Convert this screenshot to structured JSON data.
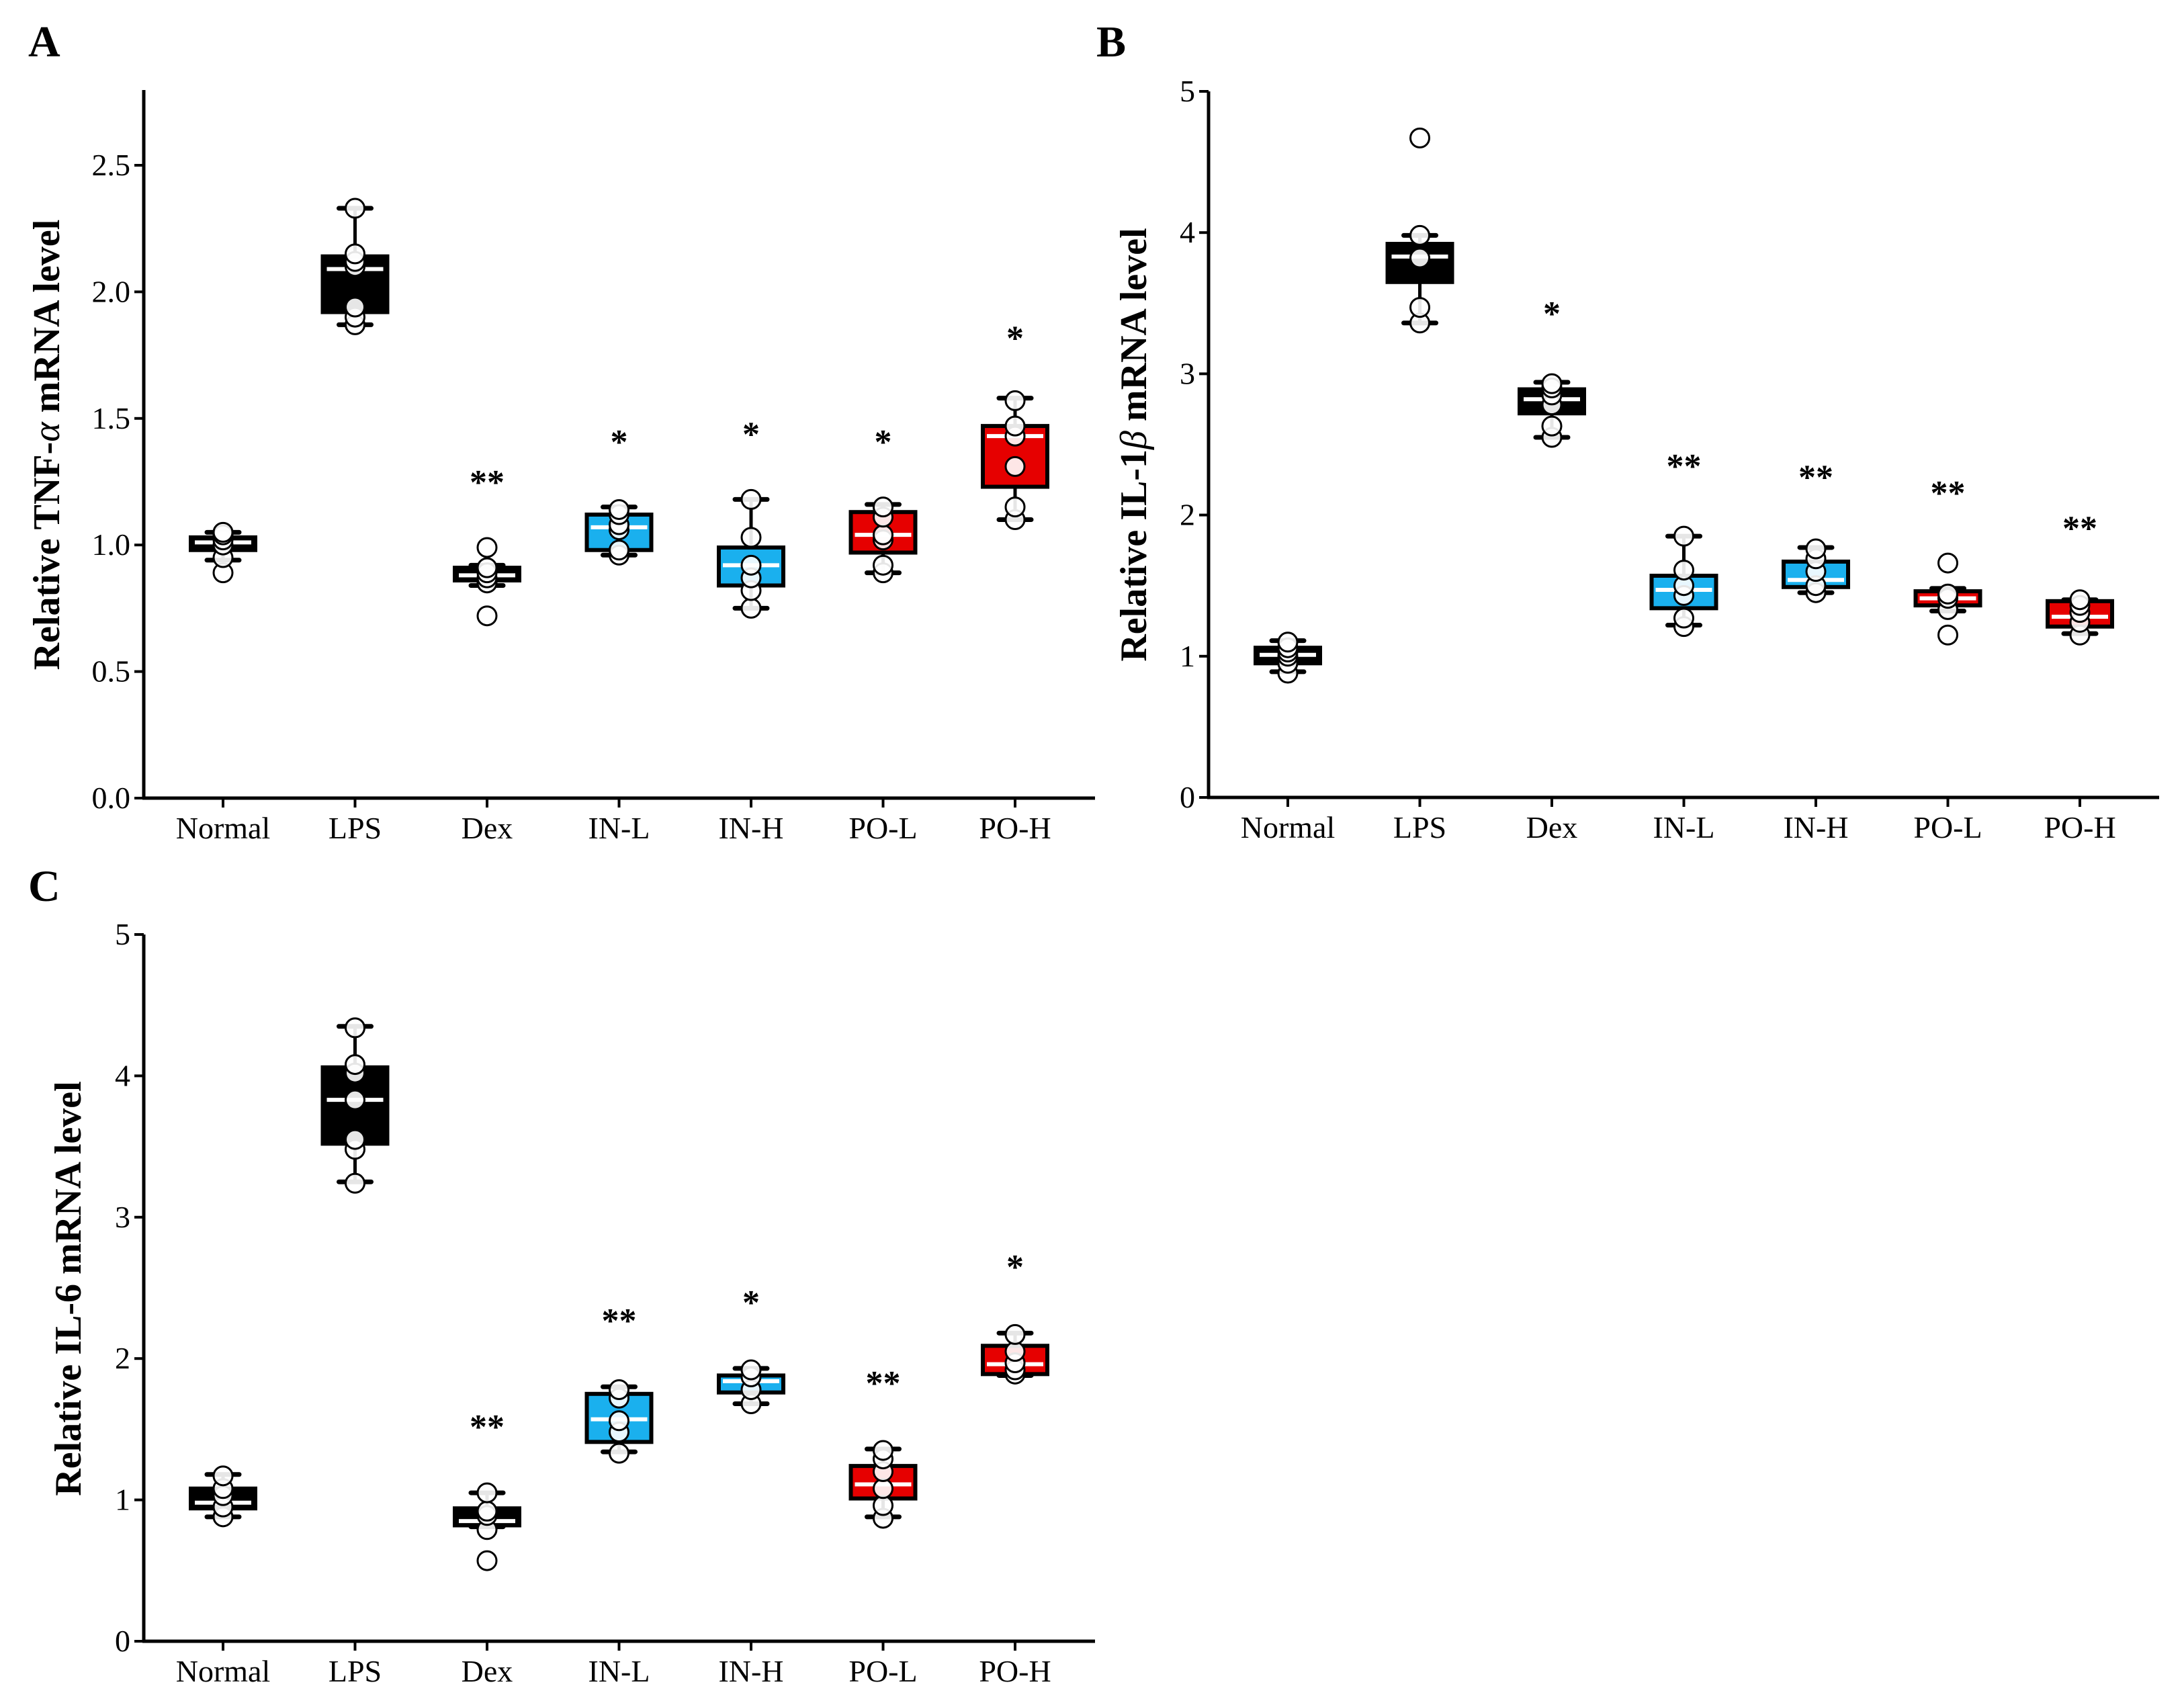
{
  "chart_data": [
    {
      "type": "box",
      "panel": "A",
      "ylabel": "Relative TNF-α mRNA level",
      "xlabel": "",
      "ylim": [
        0,
        2.8
      ],
      "yticks": [
        "0.0",
        "0.5",
        "1.0",
        "1.5",
        "2.0",
        "2.5"
      ],
      "categories": [
        "Normal",
        "LPS",
        "Dex",
        "IN-L",
        "IN-H",
        "PO-L",
        "PO-H"
      ],
      "groups": [
        {
          "name": "Normal",
          "color": "#000000",
          "whisker": [
            0.94,
            1.05
          ],
          "box": [
            0.98,
            1.03
          ],
          "median": 1.01,
          "points": [
            0.89,
            0.95,
            1.0,
            1.02,
            1.04,
            1.05
          ],
          "sig": "",
          "sig_y": 0
        },
        {
          "name": "LPS",
          "color": "#000000",
          "whisker": [
            1.87,
            2.33
          ],
          "box": [
            1.92,
            2.14
          ],
          "median": 2.09,
          "points": [
            1.87,
            1.9,
            1.94,
            2.1,
            2.12,
            2.15,
            2.33
          ],
          "sig": "",
          "sig_y": 0
        },
        {
          "name": "Dex",
          "color": "#000000",
          "whisker": [
            0.84,
            0.92
          ],
          "box": [
            0.86,
            0.91
          ],
          "median": 0.88,
          "points": [
            0.72,
            0.85,
            0.87,
            0.89,
            0.91,
            0.99
          ],
          "sig": "**",
          "sig_y": 1.26
        },
        {
          "name": "IN-L",
          "color": "#1ab0ee",
          "whisker": [
            0.96,
            1.15
          ],
          "box": [
            0.98,
            1.12
          ],
          "median": 1.07,
          "points": [
            0.96,
            0.98,
            1.06,
            1.08,
            1.12,
            1.14
          ],
          "sig": "*",
          "sig_y": 1.42
        },
        {
          "name": "IN-H",
          "color": "#1ab0ee",
          "whisker": [
            0.75,
            1.18
          ],
          "box": [
            0.84,
            0.99
          ],
          "median": 0.92,
          "points": [
            0.75,
            0.82,
            0.87,
            0.92,
            1.03,
            1.18
          ],
          "sig": "*",
          "sig_y": 1.45
        },
        {
          "name": "PO-L",
          "color": "#e60000",
          "whisker": [
            0.89,
            1.16
          ],
          "box": [
            0.97,
            1.13
          ],
          "median": 1.04,
          "points": [
            0.89,
            0.92,
            1.02,
            1.04,
            1.11,
            1.15
          ],
          "sig": "*",
          "sig_y": 1.42
        },
        {
          "name": "PO-H",
          "color": "#e60000",
          "whisker": [
            1.1,
            1.58
          ],
          "box": [
            1.23,
            1.47
          ],
          "median": 1.43,
          "points": [
            1.1,
            1.15,
            1.31,
            1.43,
            1.47,
            1.57
          ],
          "sig": "*",
          "sig_y": 1.83
        }
      ]
    },
    {
      "type": "box",
      "panel": "B",
      "ylabel": "Relative IL-1β mRNA level",
      "xlabel": "",
      "ylim": [
        0,
        5
      ],
      "yticks": [
        "0",
        "1",
        "2",
        "3",
        "4",
        "5"
      ],
      "categories": [
        "Normal",
        "LPS",
        "Dex",
        "IN-L",
        "IN-H",
        "PO-L",
        "PO-H"
      ],
      "groups": [
        {
          "name": "Normal",
          "color": "#000000",
          "whisker": [
            0.89,
            1.11
          ],
          "box": [
            0.95,
            1.06
          ],
          "median": 1.01,
          "points": [
            0.88,
            0.95,
            1.0,
            1.03,
            1.06,
            1.1
          ],
          "sig": "",
          "sig_y": 0
        },
        {
          "name": "LPS",
          "color": "#000000",
          "whisker": [
            3.36,
            3.98
          ],
          "box": [
            3.65,
            3.92
          ],
          "median": 3.83,
          "points": [
            3.36,
            3.47,
            3.82,
            3.98,
            4.67
          ],
          "sig": "",
          "sig_y": 0
        },
        {
          "name": "Dex",
          "color": "#000000",
          "whisker": [
            2.55,
            2.94
          ],
          "box": [
            2.72,
            2.89
          ],
          "median": 2.82,
          "points": [
            2.55,
            2.63,
            2.78,
            2.85,
            2.9,
            2.93
          ],
          "sig": "*",
          "sig_y": 3.45
        },
        {
          "name": "IN-L",
          "color": "#1ab0ee",
          "whisker": [
            1.22,
            1.85
          ],
          "box": [
            1.34,
            1.57
          ],
          "median": 1.47,
          "points": [
            1.21,
            1.27,
            1.43,
            1.5,
            1.61,
            1.85
          ],
          "sig": "**",
          "sig_y": 2.37
        },
        {
          "name": "IN-H",
          "color": "#1ab0ee",
          "whisker": [
            1.45,
            1.77
          ],
          "box": [
            1.49,
            1.67
          ],
          "median": 1.54,
          "points": [
            1.45,
            1.5,
            1.6,
            1.69,
            1.76
          ],
          "sig": "**",
          "sig_y": 2.29
        },
        {
          "name": "PO-L",
          "color": "#e60000",
          "whisker": [
            1.32,
            1.48
          ],
          "box": [
            1.36,
            1.46
          ],
          "median": 1.41,
          "points": [
            1.15,
            1.33,
            1.41,
            1.44,
            1.66
          ],
          "sig": "**",
          "sig_y": 2.18
        },
        {
          "name": "PO-H",
          "color": "#e60000",
          "whisker": [
            1.16,
            1.4
          ],
          "box": [
            1.21,
            1.39
          ],
          "median": 1.28,
          "points": [
            1.15,
            1.24,
            1.31,
            1.36,
            1.4
          ],
          "sig": "**",
          "sig_y": 1.93
        }
      ]
    },
    {
      "type": "box",
      "panel": "C",
      "ylabel": "Relative IL-6 mRNA level",
      "xlabel": "",
      "ylim": [
        0,
        5
      ],
      "yticks": [
        "0",
        "1",
        "2",
        "3",
        "4",
        "5"
      ],
      "categories": [
        "Normal",
        "LPS",
        "Dex",
        "IN-L",
        "IN-H",
        "PO-L",
        "PO-H"
      ],
      "groups": [
        {
          "name": "Normal",
          "color": "#000000",
          "whisker": [
            0.88,
            1.18
          ],
          "box": [
            0.94,
            1.08
          ],
          "median": 0.98,
          "points": [
            0.88,
            0.95,
            1.03,
            1.08,
            1.17
          ],
          "sig": "",
          "sig_y": 0
        },
        {
          "name": "LPS",
          "color": "#000000",
          "whisker": [
            3.25,
            4.35
          ],
          "box": [
            3.52,
            4.06
          ],
          "median": 3.83,
          "points": [
            3.24,
            3.48,
            3.55,
            3.83,
            4.02,
            4.08,
            4.34
          ],
          "sig": "",
          "sig_y": 0
        },
        {
          "name": "Dex",
          "color": "#000000",
          "whisker": [
            0.81,
            1.05
          ],
          "box": [
            0.82,
            0.94
          ],
          "median": 0.85,
          "points": [
            0.57,
            0.79,
            0.89,
            0.92,
            1.05
          ],
          "sig": "**",
          "sig_y": 1.54
        },
        {
          "name": "IN-L",
          "color": "#1ab0ee",
          "whisker": [
            1.34,
            1.8
          ],
          "box": [
            1.41,
            1.75
          ],
          "median": 1.57,
          "points": [
            1.33,
            1.48,
            1.56,
            1.72,
            1.78
          ],
          "sig": "**",
          "sig_y": 2.29
        },
        {
          "name": "IN-H",
          "color": "#1ab0ee",
          "whisker": [
            1.68,
            1.93
          ],
          "box": [
            1.76,
            1.88
          ],
          "median": 1.84,
          "points": [
            1.68,
            1.78,
            1.87,
            1.92
          ],
          "sig": "*",
          "sig_y": 2.42
        },
        {
          "name": "PO-L",
          "color": "#e60000",
          "whisker": [
            0.88,
            1.36
          ],
          "box": [
            1.01,
            1.24
          ],
          "median": 1.11,
          "points": [
            0.87,
            0.96,
            1.08,
            1.2,
            1.29,
            1.35
          ],
          "sig": "**",
          "sig_y": 1.85
        },
        {
          "name": "PO-H",
          "color": "#e60000",
          "whisker": [
            1.88,
            2.18
          ],
          "box": [
            1.89,
            2.09
          ],
          "median": 1.96,
          "points": [
            1.89,
            1.92,
            1.97,
            2.05,
            2.17
          ],
          "sig": "*",
          "sig_y": 2.67
        }
      ]
    }
  ]
}
